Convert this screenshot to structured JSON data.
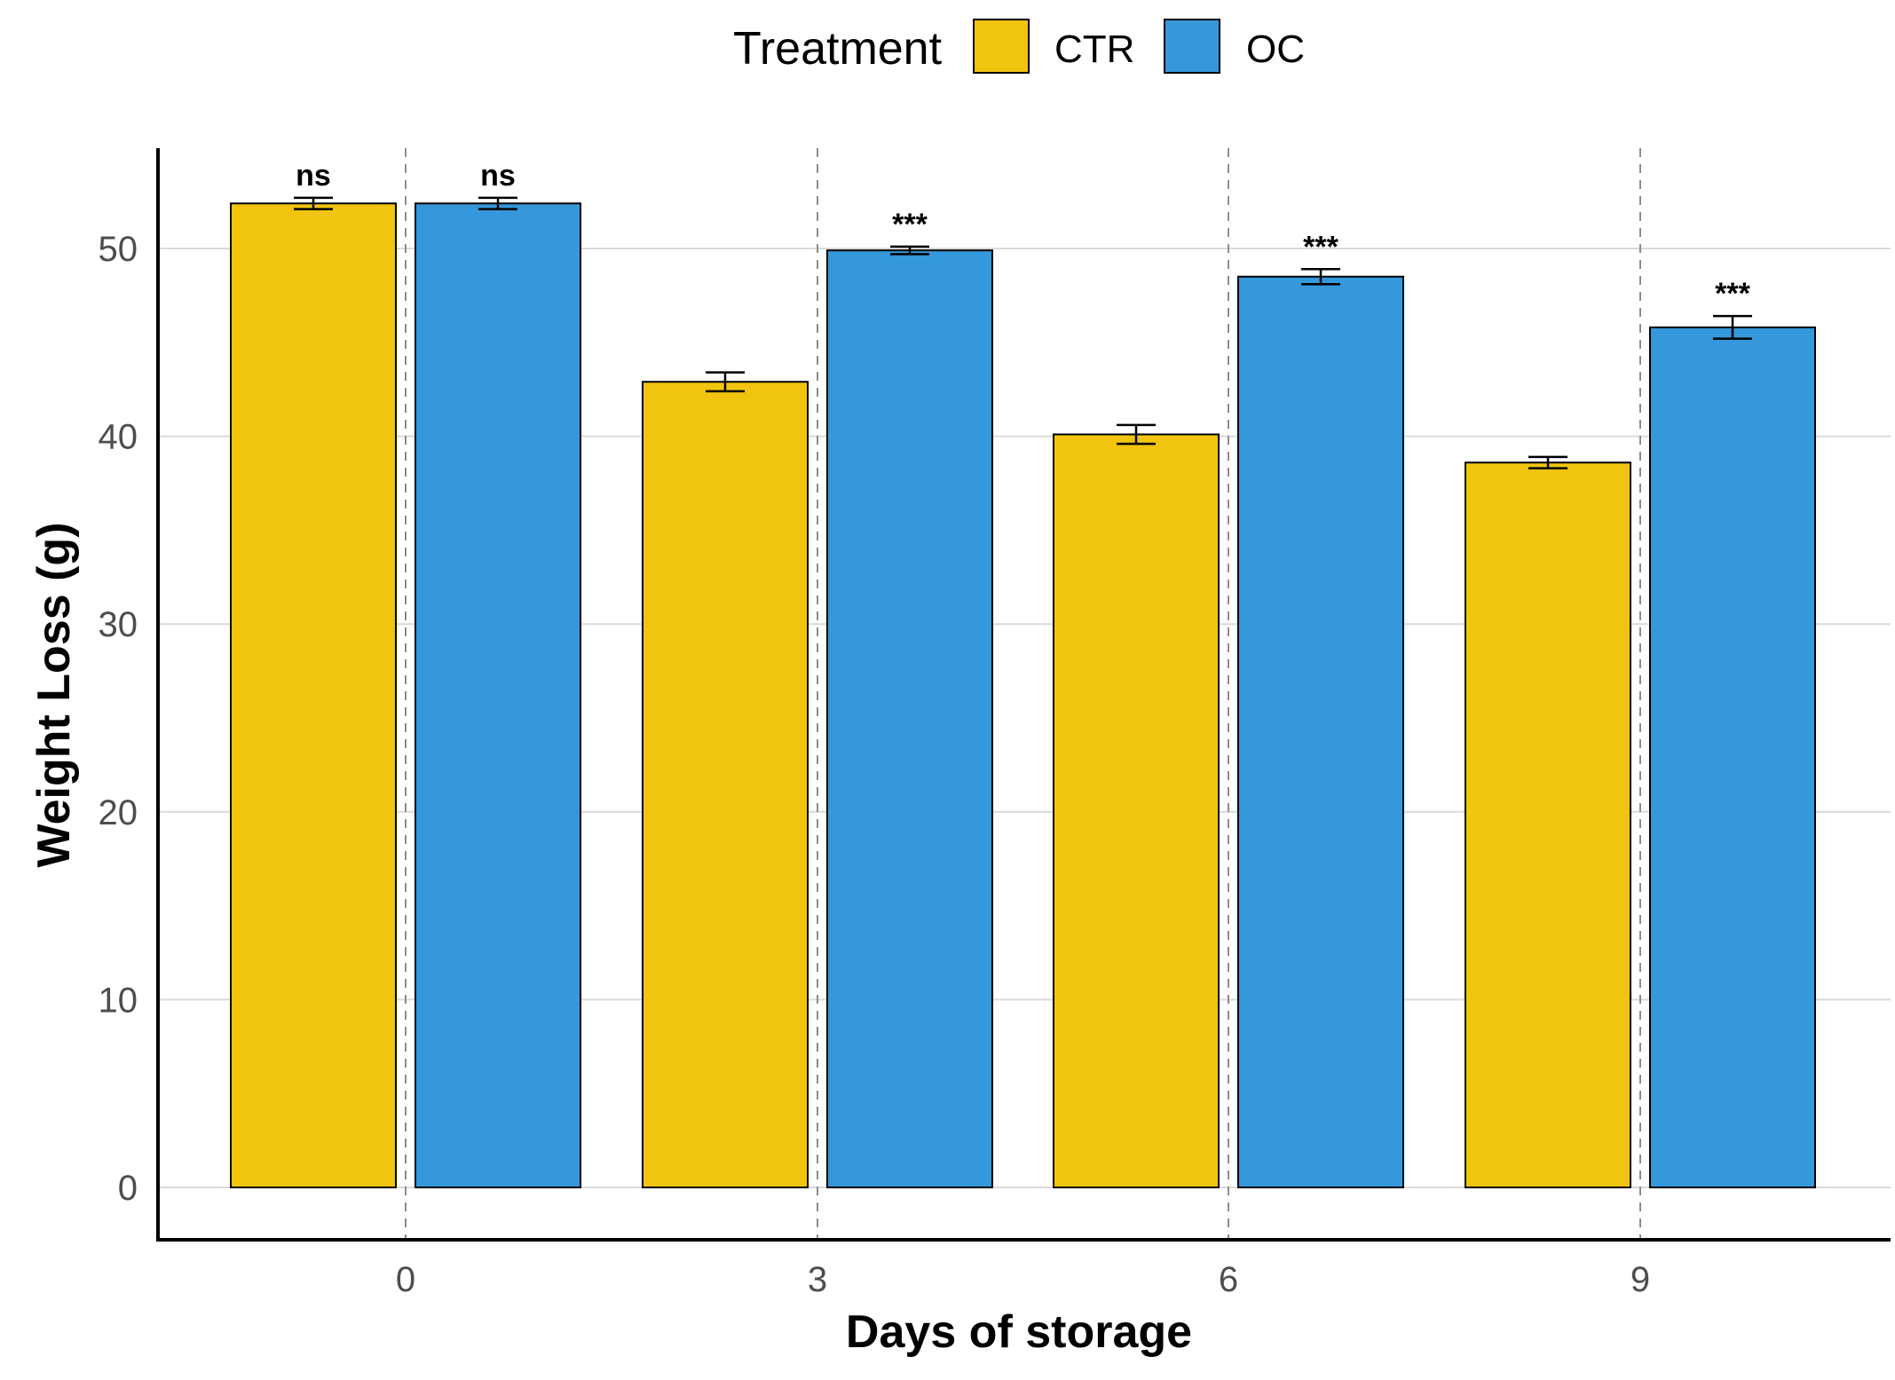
{
  "chart_data": {
    "type": "bar",
    "xlabel": "Days of storage",
    "ylabel": "Weight Loss (g)",
    "categories": [
      "0",
      "3",
      "6",
      "9"
    ],
    "ylim": [
      0,
      55
    ],
    "yticks": [
      0,
      10,
      20,
      30,
      40,
      50
    ],
    "grid": "horizontal",
    "legend": {
      "title": "Treatment",
      "placement": "top",
      "entries": [
        "CTR",
        "OC"
      ]
    },
    "series": [
      {
        "name": "CTR",
        "color": "#F1C40F",
        "values": [
          52.4,
          42.9,
          40.1,
          38.6
        ],
        "errors": [
          0.3,
          0.5,
          0.5,
          0.3
        ]
      },
      {
        "name": "OC",
        "color": "#3498DB",
        "values": [
          52.4,
          49.9,
          48.5,
          45.8
        ],
        "errors": [
          0.3,
          0.2,
          0.4,
          0.6
        ]
      }
    ],
    "significance": [
      "ns",
      "***",
      "***",
      "***"
    ],
    "significance_extra": "ns"
  }
}
